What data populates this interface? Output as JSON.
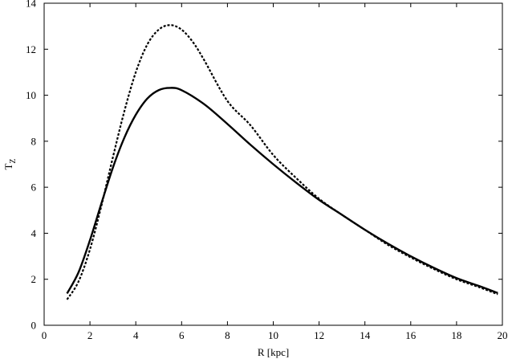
{
  "chart_data": {
    "type": "line",
    "xlabel": "R [kpc]",
    "ylabel": "T",
    "ylabel_subscript": "Z",
    "xlim": [
      0,
      20
    ],
    "ylim": [
      0,
      14
    ],
    "xticks": [
      0,
      2,
      4,
      6,
      8,
      10,
      12,
      14,
      16,
      18,
      20
    ],
    "yticks": [
      0,
      2,
      4,
      6,
      8,
      10,
      12,
      14
    ],
    "grid": false,
    "legend": "none",
    "series": [
      {
        "style": "solid",
        "color": "#000000",
        "points": [
          [
            1.0,
            1.38
          ],
          [
            1.5,
            2.3
          ],
          [
            2.0,
            3.7
          ],
          [
            2.5,
            5.3
          ],
          [
            3.0,
            6.85
          ],
          [
            3.5,
            8.15
          ],
          [
            4.0,
            9.15
          ],
          [
            4.5,
            9.85
          ],
          [
            5.0,
            10.22
          ],
          [
            5.5,
            10.32
          ],
          [
            6.0,
            10.22
          ],
          [
            7.0,
            9.6
          ],
          [
            8.0,
            8.75
          ],
          [
            9.0,
            7.85
          ],
          [
            10.0,
            7.0
          ],
          [
            11.0,
            6.2
          ],
          [
            12.0,
            5.45
          ],
          [
            13.0,
            4.8
          ],
          [
            14.0,
            4.15
          ],
          [
            15.0,
            3.55
          ],
          [
            16.0,
            3.0
          ],
          [
            17.0,
            2.5
          ],
          [
            18.0,
            2.05
          ],
          [
            19.0,
            1.7
          ],
          [
            19.8,
            1.4
          ]
        ]
      },
      {
        "style": "dashed",
        "color": "#000000",
        "points": [
          [
            1.0,
            1.12
          ],
          [
            1.5,
            1.9
          ],
          [
            2.0,
            3.3
          ],
          [
            2.5,
            5.2
          ],
          [
            3.0,
            7.3
          ],
          [
            3.5,
            9.3
          ],
          [
            4.0,
            11.0
          ],
          [
            4.5,
            12.2
          ],
          [
            5.0,
            12.85
          ],
          [
            5.5,
            13.05
          ],
          [
            6.0,
            12.85
          ],
          [
            6.5,
            12.3
          ],
          [
            7.0,
            11.5
          ],
          [
            8.0,
            9.75
          ],
          [
            9.0,
            8.7
          ],
          [
            10.0,
            7.4
          ],
          [
            11.0,
            6.4
          ],
          [
            12.0,
            5.5
          ],
          [
            13.0,
            4.8
          ],
          [
            14.0,
            4.15
          ],
          [
            15.0,
            3.5
          ],
          [
            16.0,
            2.95
          ],
          [
            17.0,
            2.45
          ],
          [
            18.0,
            2.0
          ],
          [
            19.0,
            1.65
          ],
          [
            19.8,
            1.35
          ]
        ]
      }
    ]
  }
}
